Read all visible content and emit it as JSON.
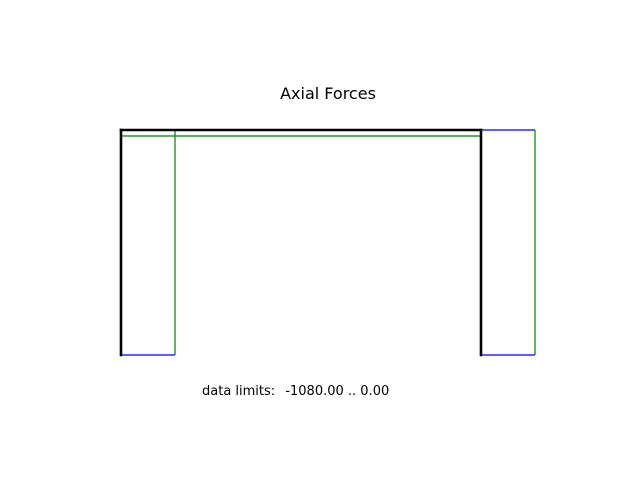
{
  "figure": {
    "title": "Axial Forces",
    "limits_label": "data limits:",
    "limits_value": "-1080.00 .. 0.00"
  },
  "structure": {
    "nodes": [
      {
        "id": "n1",
        "x": 0,
        "y": 0
      },
      {
        "id": "n2",
        "x": 0,
        "y": 5
      },
      {
        "id": "n3",
        "x": 8,
        "y": 5
      },
      {
        "id": "n4",
        "x": 8,
        "y": 0
      }
    ],
    "members": [
      {
        "id": "left-column",
        "from": "n1",
        "to": "n2"
      },
      {
        "id": "beam",
        "from": "n2",
        "to": "n3"
      },
      {
        "id": "right-column",
        "from": "n3",
        "to": "n4"
      }
    ]
  },
  "diagram_data": {
    "quantity": "axial force",
    "data_limits": [
      -1080.0,
      0.0
    ],
    "colors": {
      "frame": "#000000",
      "diagram": "#008000",
      "outline": "#0000ff"
    }
  }
}
